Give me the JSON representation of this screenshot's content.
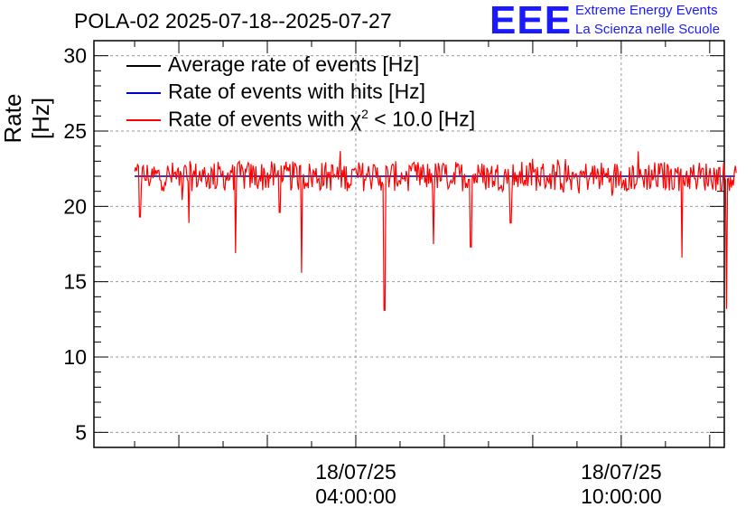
{
  "header": {
    "title": "POLA-02 2025-07-18--2025-07-27",
    "logo_text": "EEE",
    "logo_line1": "Extreme Energy Events",
    "logo_line2": "La Scienza nelle Scuole"
  },
  "colors": {
    "average": "#000000",
    "hits": "#0000cc",
    "chi2": "#ff0000",
    "grid": "#9a9a9a",
    "logo": "#1a1aff"
  },
  "chart_data": {
    "type": "line",
    "title": "POLA-02 2025-07-18--2025-07-27",
    "ylabel": "Rate [Hz]",
    "xlabel": "",
    "ylim": [
      4,
      31
    ],
    "yticks": [
      5,
      10,
      15,
      20,
      25,
      30
    ],
    "ytick_labels": [
      "5",
      "10",
      "15",
      "20",
      "25",
      "30"
    ],
    "xlim_hours": [
      -1.92,
      12.33
    ],
    "xticks": [
      {
        "hour": 4,
        "date": "18/07/25",
        "time": "04:00:00"
      },
      {
        "hour": 10,
        "date": "18/07/25",
        "time": "10:00:00"
      }
    ],
    "grid": true,
    "legend_position": "top-left",
    "legend": [
      {
        "name": "Average rate of events [Hz]",
        "color": "#000000"
      },
      {
        "name": "Rate of events with hits [Hz]",
        "color": "#0000cc"
      },
      {
        "name_prefix": "Rate of events with ",
        "symbol": "χ",
        "sup": "2",
        "name_suffix": " < 10.0 [Hz]",
        "color": "#ff0000"
      }
    ],
    "series": [
      {
        "name": "Average rate of events [Hz]",
        "color": "#000000",
        "x_range": [
          -1.0,
          12.6
        ],
        "mean": 22.0
      },
      {
        "name": "Rate of events with hits [Hz]",
        "color": "#0000cc",
        "x_range": [
          -1.0,
          12.6
        ],
        "mean": 22.0
      },
      {
        "name": "Rate of events with χ2 < 10.0 [Hz]",
        "color": "#ff0000",
        "x_range": [
          -1.0,
          12.6
        ],
        "mean": 22.0,
        "noise_amplitude": 1.0,
        "dips": [
          {
            "hour": -0.88,
            "value": 19.3
          },
          {
            "hour": 0.23,
            "value": 18.9
          },
          {
            "hour": 1.29,
            "value": 16.9
          },
          {
            "hour": 2.28,
            "value": 19.6
          },
          {
            "hour": 2.78,
            "value": 15.6
          },
          {
            "hour": 4.65,
            "value": 13.1
          },
          {
            "hour": 5.76,
            "value": 17.5
          },
          {
            "hour": 6.6,
            "value": 17.3
          },
          {
            "hour": 7.5,
            "value": 18.9
          },
          {
            "hour": 11.37,
            "value": 16.6
          },
          {
            "hour": 12.38,
            "value": 13.2
          }
        ]
      }
    ]
  }
}
